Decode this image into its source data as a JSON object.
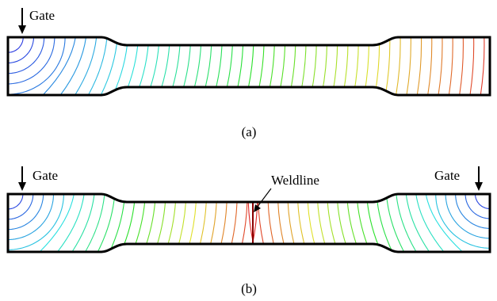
{
  "panel_a": {
    "caption": "(a)",
    "gate_label": "Gate"
  },
  "panel_b": {
    "caption": "(b)",
    "gate_left_label": "Gate",
    "gate_right_label": "Gate",
    "weldline_label": "Weldline"
  },
  "colors": {
    "outline": "#000000",
    "gate_region": "#3a3ac8",
    "end_of_fill": "#e02020",
    "weldline": "#8b0000"
  }
}
